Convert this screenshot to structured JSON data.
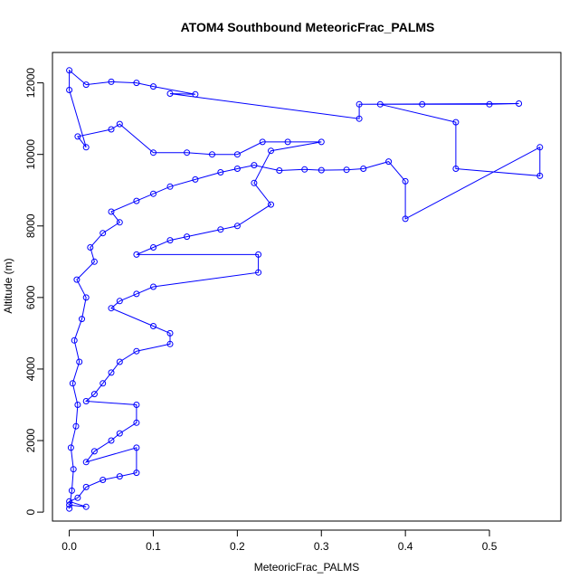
{
  "chart_data": {
    "type": "scatter",
    "title": "ATOM4 Southbound MeteoricFrac_PALMS",
    "xlabel": "MeteoricFrac_PALMS",
    "ylabel": "Altitude (m)",
    "xlim": [
      -0.02,
      0.585
    ],
    "ylim": [
      -250,
      12850
    ],
    "xticks": [
      0.0,
      0.1,
      0.2,
      0.3,
      0.4,
      0.5
    ],
    "xtick_labels": [
      "0.0",
      "0.1",
      "0.2",
      "0.3",
      "0.4",
      "0.5"
    ],
    "yticks": [
      0,
      2000,
      4000,
      6000,
      8000,
      10000,
      12000
    ],
    "ytick_labels": [
      "0",
      "2000",
      "4000",
      "6000",
      "8000",
      "10000",
      "12000"
    ],
    "grid": false,
    "style": {
      "color": "#0000ff",
      "marker": "open-circle",
      "connected": true
    },
    "points": [
      [
        0.0,
        100
      ],
      [
        0.003,
        600
      ],
      [
        0.005,
        1200
      ],
      [
        0.002,
        1800
      ],
      [
        0.008,
        2400
      ],
      [
        0.01,
        3000
      ],
      [
        0.004,
        3600
      ],
      [
        0.012,
        4200
      ],
      [
        0.006,
        4800
      ],
      [
        0.015,
        5400
      ],
      [
        0.02,
        6000
      ],
      [
        0.009,
        6500
      ],
      [
        0.03,
        7000
      ],
      [
        0.025,
        7400
      ],
      [
        0.04,
        7800
      ],
      [
        0.06,
        8100
      ],
      [
        0.05,
        8400
      ],
      [
        0.08,
        8700
      ],
      [
        0.1,
        8900
      ],
      [
        0.12,
        9100
      ],
      [
        0.15,
        9300
      ],
      [
        0.18,
        9500
      ],
      [
        0.2,
        9600
      ],
      [
        0.22,
        9700
      ],
      [
        0.25,
        9550
      ],
      [
        0.28,
        9580
      ],
      [
        0.3,
        9560
      ],
      [
        0.33,
        9570
      ],
      [
        0.35,
        9600
      ],
      [
        0.38,
        9800
      ],
      [
        0.4,
        9250
      ],
      [
        0.4,
        8200
      ],
      [
        0.56,
        10200
      ],
      [
        0.56,
        9400
      ],
      [
        0.46,
        9600
      ],
      [
        0.46,
        10900
      ],
      [
        0.37,
        11400
      ],
      [
        0.42,
        11400
      ],
      [
        0.5,
        11400
      ],
      [
        0.535,
        11420
      ],
      [
        0.345,
        11400
      ],
      [
        0.345,
        11000
      ],
      [
        0.12,
        11700
      ],
      [
        0.15,
        11680
      ],
      [
        0.1,
        11900
      ],
      [
        0.08,
        12000
      ],
      [
        0.05,
        12030
      ],
      [
        0.02,
        11950
      ],
      [
        0.0,
        12350
      ],
      [
        0.0,
        11800
      ],
      [
        0.02,
        10200
      ],
      [
        0.01,
        10500
      ],
      [
        0.05,
        10700
      ],
      [
        0.06,
        10850
      ],
      [
        0.1,
        10050
      ],
      [
        0.14,
        10050
      ],
      [
        0.17,
        10000
      ],
      [
        0.2,
        10000
      ],
      [
        0.23,
        10350
      ],
      [
        0.26,
        10350
      ],
      [
        0.3,
        10350
      ],
      [
        0.24,
        10100
      ],
      [
        0.22,
        9200
      ],
      [
        0.24,
        8600
      ],
      [
        0.2,
        8000
      ],
      [
        0.18,
        7900
      ],
      [
        0.14,
        7700
      ],
      [
        0.12,
        7600
      ],
      [
        0.1,
        7400
      ],
      [
        0.08,
        7200
      ],
      [
        0.225,
        7200
      ],
      [
        0.225,
        6700
      ],
      [
        0.1,
        6300
      ],
      [
        0.08,
        6100
      ],
      [
        0.06,
        5900
      ],
      [
        0.05,
        5700
      ],
      [
        0.1,
        5200
      ],
      [
        0.12,
        5000
      ],
      [
        0.12,
        4700
      ],
      [
        0.08,
        4500
      ],
      [
        0.06,
        4200
      ],
      [
        0.05,
        3900
      ],
      [
        0.04,
        3600
      ],
      [
        0.03,
        3300
      ],
      [
        0.02,
        3100
      ],
      [
        0.08,
        3000
      ],
      [
        0.08,
        2500
      ],
      [
        0.06,
        2200
      ],
      [
        0.05,
        2000
      ],
      [
        0.03,
        1700
      ],
      [
        0.02,
        1400
      ],
      [
        0.08,
        1800
      ],
      [
        0.08,
        1100
      ],
      [
        0.06,
        1000
      ],
      [
        0.04,
        900
      ],
      [
        0.02,
        700
      ],
      [
        0.01,
        400
      ],
      [
        0.0,
        300
      ],
      [
        0.02,
        150
      ],
      [
        0.0,
        200
      ]
    ]
  }
}
